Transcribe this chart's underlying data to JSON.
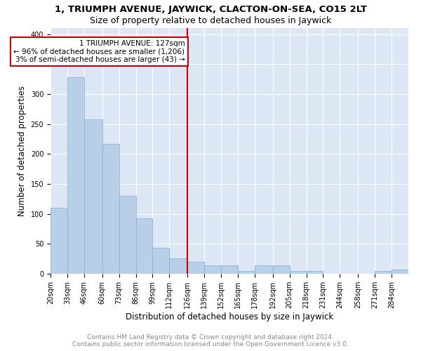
{
  "title": "1, TRIUMPH AVENUE, JAYWICK, CLACTON-ON-SEA, CO15 2LT",
  "subtitle": "Size of property relative to detached houses in Jaywick",
  "xlabel": "Distribution of detached houses by size in Jaywick",
  "ylabel": "Number of detached properties",
  "bar_color": "#b8cfe8",
  "bar_edge_color": "#7fafd4",
  "grid_color": "#ffffff",
  "bg_color": "#dce6f5",
  "annotation_box_color": "#cc0000",
  "annotation_line_color": "#cc0000",
  "property_line_x": 126,
  "annotation_title": "1 TRIUMPH AVENUE: 127sqm",
  "annotation_line1": "← 96% of detached houses are smaller (1,206)",
  "annotation_line2": "3% of semi-detached houses are larger (43) →",
  "bin_labels": [
    "20sqm",
    "33sqm",
    "46sqm",
    "60sqm",
    "73sqm",
    "86sqm",
    "99sqm",
    "112sqm",
    "126sqm",
    "139sqm",
    "152sqm",
    "165sqm",
    "178sqm",
    "192sqm",
    "205sqm",
    "218sqm",
    "231sqm",
    "244sqm",
    "258sqm",
    "271sqm",
    "284sqm"
  ],
  "bin_left_edges": [
    20,
    33,
    46,
    60,
    73,
    86,
    99,
    112,
    126,
    139,
    152,
    165,
    178,
    192,
    205,
    218,
    231,
    244,
    258,
    271,
    284
  ],
  "bin_widths": [
    13,
    13,
    14,
    13,
    13,
    13,
    13,
    14,
    13,
    13,
    13,
    13,
    14,
    13,
    13,
    13,
    13,
    14,
    13,
    13,
    13
  ],
  "bar_heights": [
    110,
    328,
    258,
    217,
    130,
    93,
    43,
    26,
    20,
    14,
    14,
    5,
    14,
    14,
    5,
    5,
    0,
    0,
    0,
    5,
    7
  ],
  "ylim": [
    0,
    410
  ],
  "yticks": [
    0,
    50,
    100,
    150,
    200,
    250,
    300,
    350,
    400
  ],
  "footer_line1": "Contains HM Land Registry data © Crown copyright and database right 2024.",
  "footer_line2": "Contains public sector information licensed under the Open Government Licence v3.0.",
  "title_fontsize": 9.5,
  "subtitle_fontsize": 9,
  "axis_label_fontsize": 8.5,
  "tick_fontsize": 7,
  "footer_fontsize": 6.5,
  "ann_fontsize": 7.5
}
